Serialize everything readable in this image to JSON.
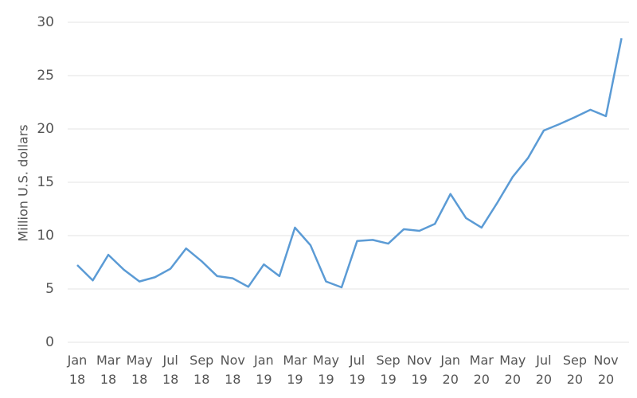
{
  "chart_data": {
    "type": "line",
    "y_label": "Million U.S. dollars",
    "categories": [
      "Jan 18",
      null,
      "Mar 18",
      null,
      "May 18",
      null,
      "Jul 18",
      null,
      "Sep 18",
      null,
      "Nov 18",
      null,
      "Jan 19",
      null,
      "Mar 19",
      null,
      "May 19",
      null,
      "Jul 19",
      null,
      "Sep 19",
      null,
      "Nov 19",
      null,
      "Jan 20",
      null,
      "Mar 20",
      null,
      "May 20",
      null,
      "Jul 20",
      null,
      "Sep 20",
      null,
      "Nov 20",
      null
    ],
    "values": [
      7.24,
      5.8,
      8.2,
      6.8,
      5.7,
      6.1,
      6.9,
      8.8,
      7.6,
      6.2,
      6.0,
      5.2,
      7.3,
      6.2,
      10.75,
      9.1,
      5.7,
      5.15,
      9.5,
      9.6,
      9.25,
      10.6,
      10.45,
      11.1,
      13.9,
      11.65,
      10.75,
      13.05,
      15.5,
      17.3,
      19.85,
      20.45,
      21.1,
      21.8,
      21.2,
      28.5
    ],
    "color": "#5b9bd5",
    "ylim": [
      0,
      30
    ],
    "yticks": [
      0,
      5,
      10,
      15,
      20,
      25,
      30
    ],
    "grid": true
  }
}
